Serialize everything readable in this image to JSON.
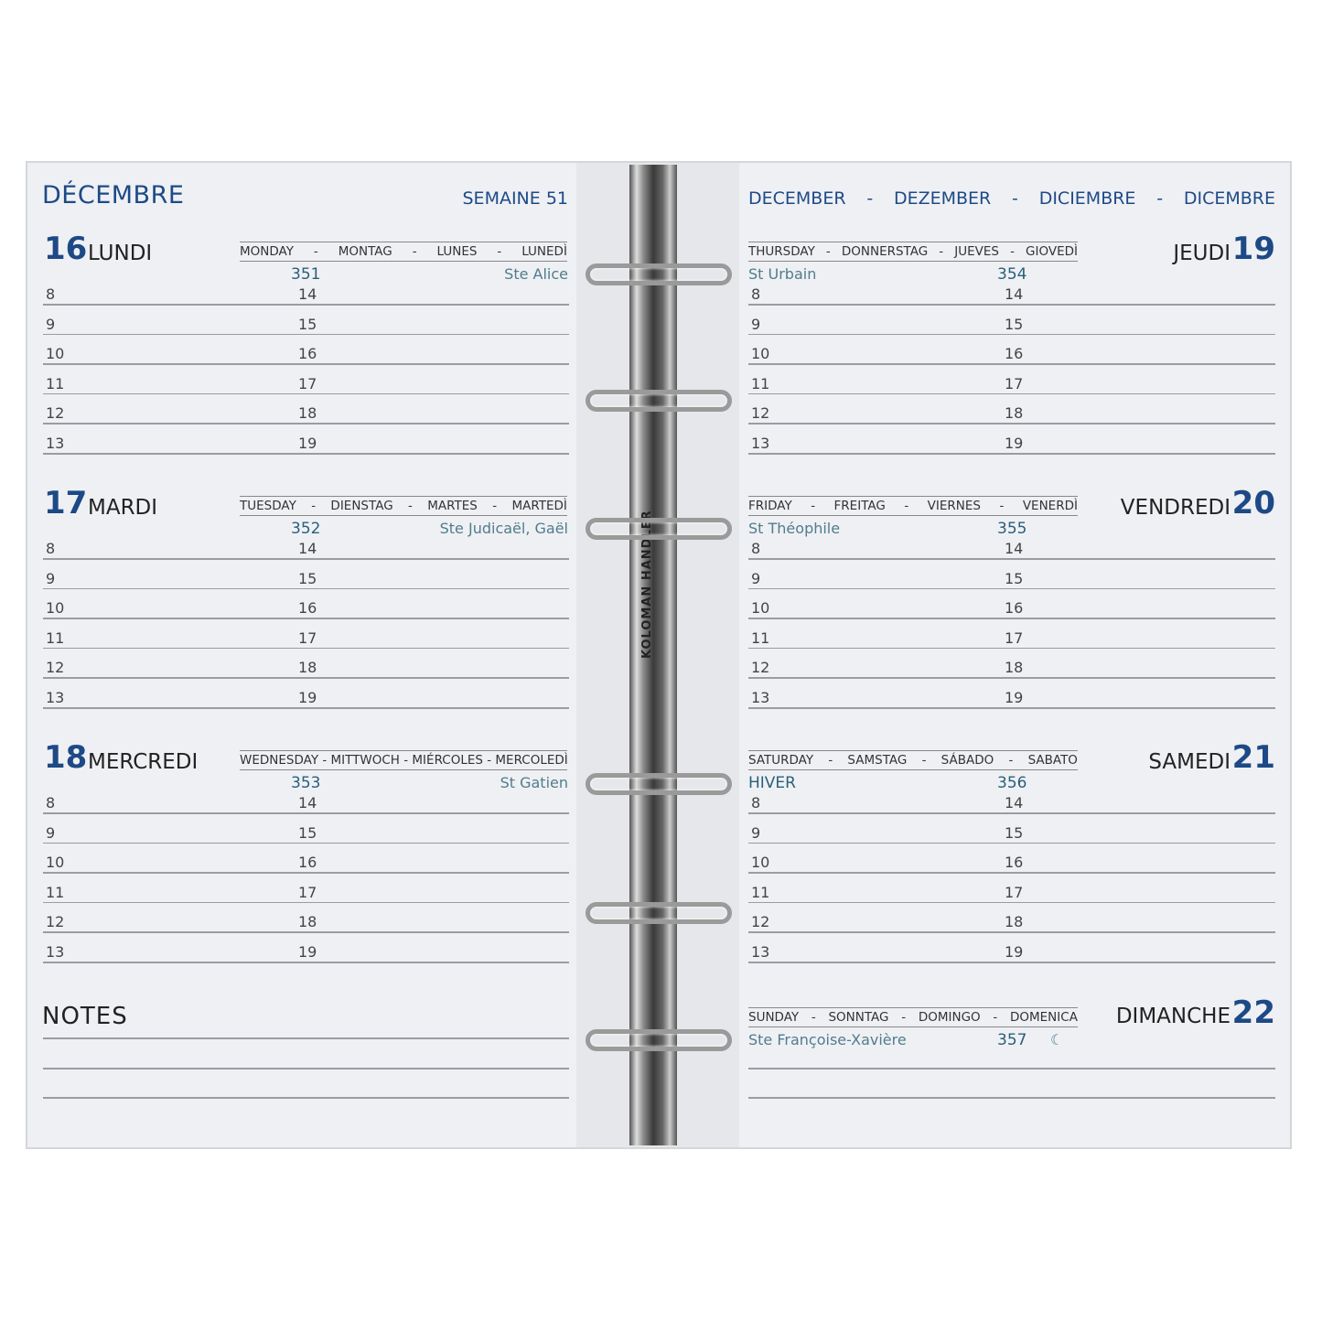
{
  "left_header": {
    "month": "DÉCEMBRE",
    "week": "SEMAINE 51"
  },
  "right_header": {
    "months": [
      "DECEMBER",
      "-",
      "DEZEMBER",
      "-",
      "DICIEMBRE",
      "-",
      "DICEMBRE"
    ]
  },
  "binder_brand": "KOLOMAN HANDLER",
  "hours_am": [
    "8",
    "9",
    "10",
    "11",
    "12",
    "13"
  ],
  "hours_pm": [
    "14",
    "15",
    "16",
    "17",
    "18",
    "19"
  ],
  "days_left": [
    {
      "num": "16",
      "name": "LUNDI",
      "labels": [
        "MONDAY",
        "-",
        "MONTAG",
        "-",
        "LUNES",
        "-",
        "LUNEDÌ"
      ],
      "yday": "351",
      "saint": "Ste Alice"
    },
    {
      "num": "17",
      "name": "MARDI",
      "labels": [
        "TUESDAY",
        "-",
        "DIENSTAG",
        "-",
        "MARTES",
        "-",
        "MARTEDÌ"
      ],
      "yday": "352",
      "saint": "Ste Judicaël, Gaël"
    },
    {
      "num": "18",
      "name": "MERCREDI",
      "labels": [
        "WEDNESDAY - MITTWOCH - MIÉRCOLES - MERCOLEDÌ"
      ],
      "yday": "353",
      "saint": "St Gatien"
    }
  ],
  "days_right": [
    {
      "num": "19",
      "name": "JEUDI",
      "labels": [
        "THURSDAY",
        "-",
        "DONNERSTAG",
        "-",
        "JUEVES",
        "-",
        "GIOVEDÌ"
      ],
      "yday": "354",
      "saint": "St Urbain"
    },
    {
      "num": "20",
      "name": "VENDREDI",
      "labels": [
        "FRIDAY",
        "-",
        "FREITAG",
        "-",
        "VIERNES",
        "-",
        "VENERDÌ"
      ],
      "yday": "355",
      "saint": "St Théophile"
    },
    {
      "num": "21",
      "name": "SAMEDI",
      "labels": [
        "SATURDAY",
        "-",
        "SAMSTAG",
        "-",
        "SÁBADO",
        "-",
        "SABATO"
      ],
      "yday": "356",
      "saint": "HIVER"
    }
  ],
  "notes": {
    "title": "NOTES"
  },
  "sunday": {
    "num": "22",
    "name": "DIMANCHE",
    "labels": [
      "SUNDAY",
      "-",
      "SONNTAG",
      "-",
      "DOMINGO",
      "-",
      "DOMENICA"
    ],
    "yday": "357",
    "saint": "Ste Françoise-Xavière",
    "moon": "☾",
    "moon_icon": "last-quarter-moon-icon"
  },
  "colors": {
    "accent": "#1d4a86",
    "saint": "#4f7d8c"
  }
}
